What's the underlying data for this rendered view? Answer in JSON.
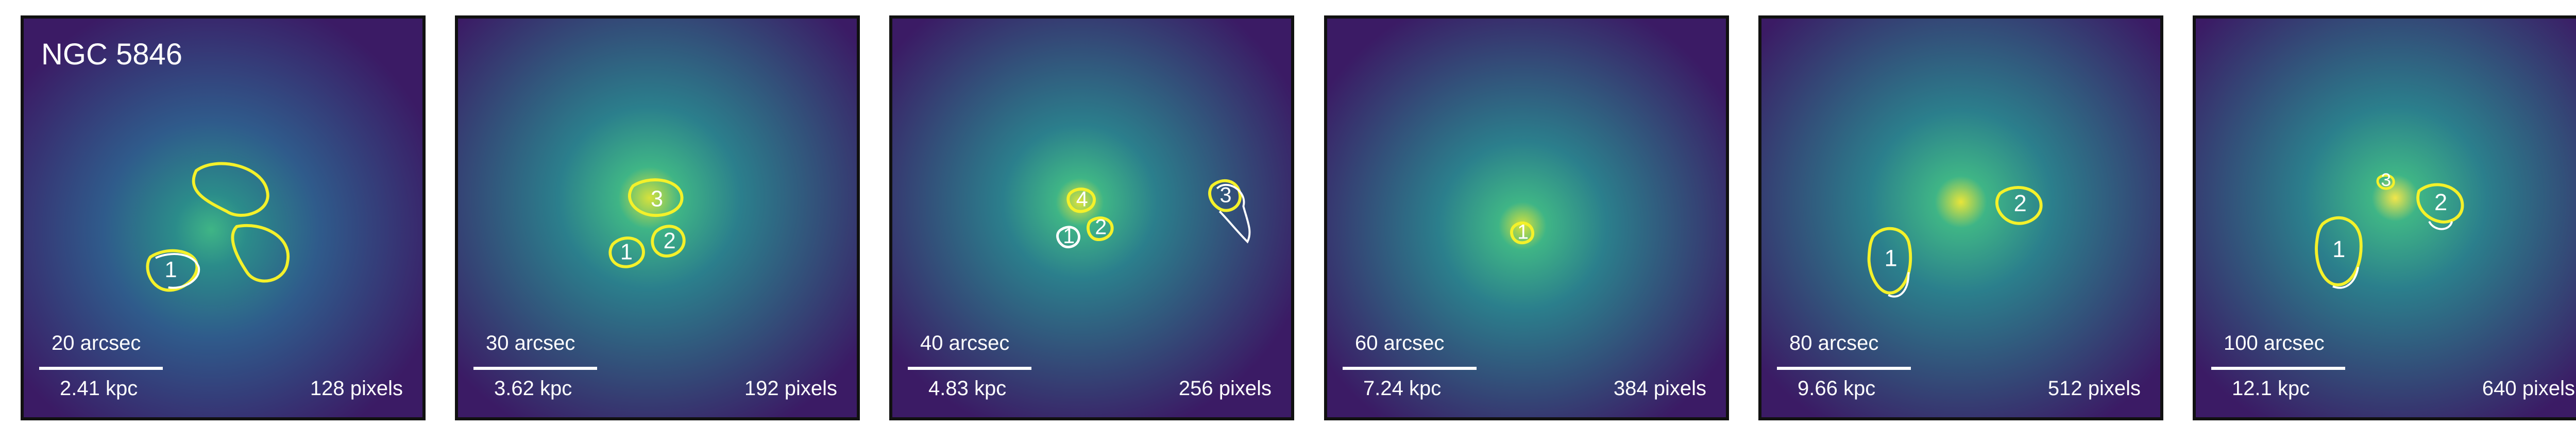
{
  "galaxy": "NGC 5846",
  "colors": {
    "background": "#3b1b65",
    "emission": "#f2e64a",
    "contour_yellow": "#f4f12a",
    "contour_white": "#ffffff"
  },
  "panels": [
    {
      "arcsec": "20 arcsec",
      "kpc": "2.41 kpc",
      "pixels": "128 pixels",
      "labels": [
        "1"
      ]
    },
    {
      "arcsec": "30 arcsec",
      "kpc": "3.62 kpc",
      "pixels": "192 pixels",
      "labels": [
        "1",
        "2",
        "3"
      ]
    },
    {
      "arcsec": "40 arcsec",
      "kpc": "4.83 kpc",
      "pixels": "256 pixels",
      "labels": [
        "1",
        "2",
        "3",
        "4"
      ]
    },
    {
      "arcsec": "60 arcsec",
      "kpc": "7.24 kpc",
      "pixels": "384 pixels",
      "labels": [
        "1"
      ]
    },
    {
      "arcsec": "80 arcsec",
      "kpc": "9.66 kpc",
      "pixels": "512 pixels",
      "labels": [
        "1",
        "2"
      ]
    },
    {
      "arcsec": "100 arcsec",
      "kpc": "12.1 kpc",
      "pixels": "640 pixels",
      "labels": [
        "1",
        "2",
        "3"
      ]
    }
  ]
}
